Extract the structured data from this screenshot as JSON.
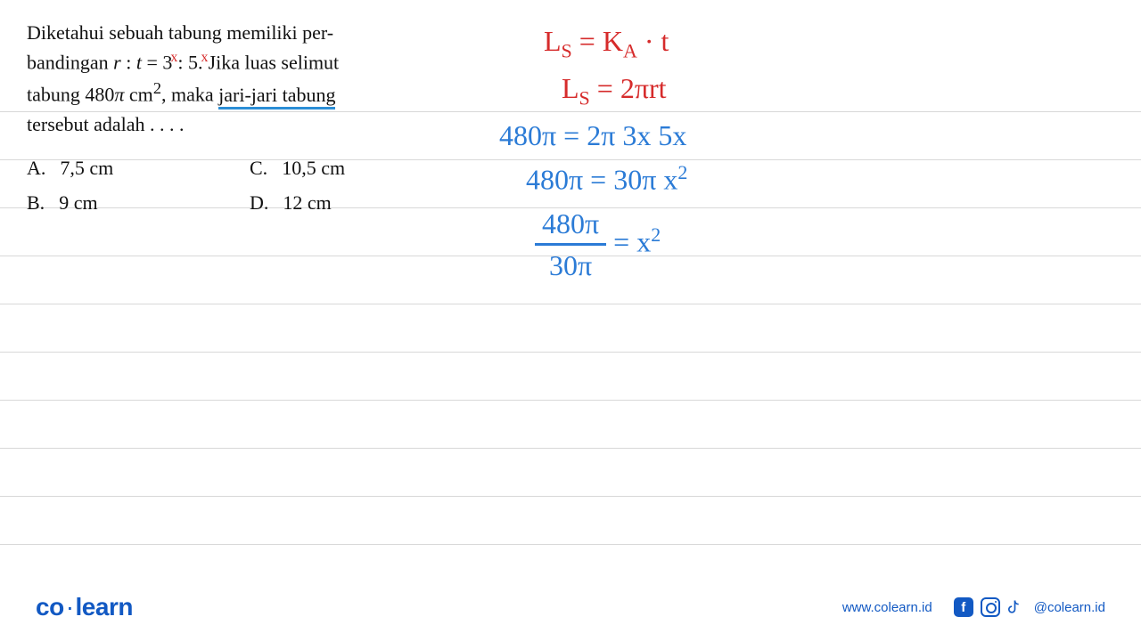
{
  "ruled_line_positions": [
    125,
    179,
    233,
    287,
    341,
    395,
    449,
    503,
    557,
    611
  ],
  "question": {
    "line1_a": "Diketahui sebuah tabung memiliki per-",
    "line2_a": "bandingan ",
    "ratio_r": "r",
    "colon1": " : ",
    "ratio_t": "t",
    "eq": " = 3",
    "x1": "x",
    "colon2": ": 5.",
    "x2": "x",
    "line2_b": "Jika luas selimut",
    "line3_a": "tabung 480",
    "pi": "π",
    "cm2_a": " cm",
    "cm2_sup": "2",
    "line3_b": ", maka ",
    "underlined": "jari-jari tabung",
    "line4": "tersebut adalah . . . .",
    "options": {
      "a_label": "A.",
      "a_text": "7,5 cm",
      "b_label": "B.",
      "b_text": "9 cm",
      "c_label": "C.",
      "c_text": "10,5 cm",
      "d_label": "D.",
      "d_text": "12 cm"
    }
  },
  "handwriting": {
    "l1_a": "L",
    "l1_sub": "S",
    "l1_b": " = K",
    "l1_sub2": "A",
    "l1_c": " · t",
    "l2_a": "L",
    "l2_sub": "S",
    "l2_b": " = 2πrt",
    "l3": "480π = 2π 3x 5x",
    "l4_a": "480π = 30π x",
    "l4_sup": "2",
    "l5_num": "480π",
    "l5_den": "30π",
    "l5_eq": " = x",
    "l5_sup": "2"
  },
  "footer": {
    "logo_co": "co",
    "logo_dot": "·",
    "logo_learn": "learn",
    "url": "www.colearn.id",
    "handle": "@colearn.id",
    "fb_letter": "f"
  },
  "colors": {
    "red": "#d62b2b",
    "blue": "#2b7bd6",
    "underline": "#2b8ed6",
    "brand": "#1259c3",
    "ruled": "#d8d8d8",
    "text": "#111111",
    "bg": "#ffffff"
  },
  "typography": {
    "question_fontsize": 22,
    "handwriting_fontsize": 32,
    "footer_fontsize": 15,
    "logo_fontsize": 28
  }
}
